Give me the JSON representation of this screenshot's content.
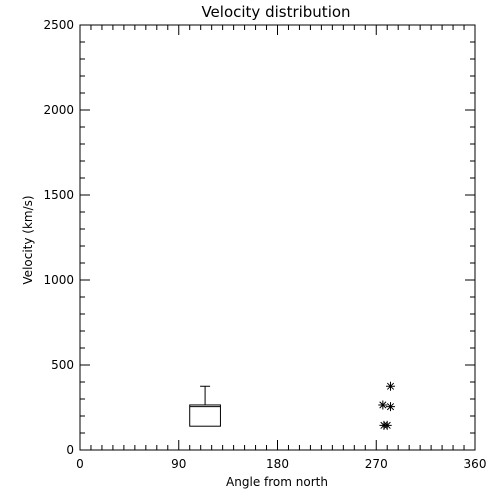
{
  "chart_data": {
    "type": "box",
    "title": "Velocity distribution",
    "xlabel": "Angle from north",
    "ylabel": "Velocity (km/s)",
    "xlim": [
      0,
      360
    ],
    "ylim": [
      0,
      2500
    ],
    "x_ticks": [
      0,
      90,
      180,
      270,
      360
    ],
    "y_ticks": [
      0,
      500,
      1000,
      1500,
      2000,
      2500
    ],
    "x_minor_step": 10,
    "y_minor_step": 100,
    "grid": false,
    "legend": "none",
    "box": {
      "angle_range": [
        100,
        128
      ],
      "q1": 140,
      "median": 255,
      "q3": 265,
      "whisker_high": 375
    },
    "points": [
      {
        "x": 283,
        "y": 375
      },
      {
        "x": 276,
        "y": 265
      },
      {
        "x": 283,
        "y": 255
      },
      {
        "x": 277,
        "y": 145
      },
      {
        "x": 280,
        "y": 145
      }
    ],
    "colors": {
      "ink": "#000000",
      "background": "#ffffff"
    }
  }
}
